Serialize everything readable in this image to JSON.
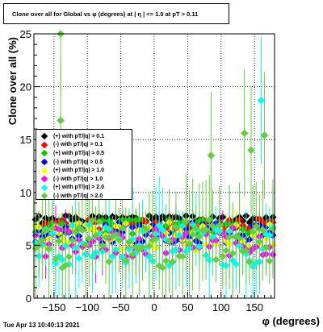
{
  "title": "Clone  over all for Global vs φ (degrees) at | η | <= 1.0 at pT > 0.11",
  "timestamp": "Tue Apr 13 10:40:13 2021",
  "chart_data": {
    "type": "scatter",
    "xlabel": "φ (degrees)",
    "ylabel": "Clone  over all (%)",
    "xlim": [
      -180,
      180
    ],
    "ylim": [
      0,
      25
    ],
    "xticks": [
      "−150",
      "−100",
      "−50",
      "0",
      "50",
      "100",
      "150"
    ],
    "xtick_values": [
      -150,
      -100,
      -50,
      0,
      50,
      100,
      150
    ],
    "yticks": [
      "0",
      "5",
      "10",
      "15",
      "20",
      "25"
    ],
    "ytick_values": [
      0,
      5,
      10,
      15,
      20,
      25
    ],
    "grid": true,
    "legend_placement": "left",
    "series": [
      {
        "name": "(+) with pT/|q| > 0.1",
        "color": "#000000",
        "mean": 7.4,
        "spread": 0.4,
        "err": 0.4,
        "seed": 1
      },
      {
        "name": "(-) with pT/|q| > 0.1",
        "color": "#ff0000",
        "mean": 7.0,
        "spread": 0.5,
        "err": 0.5,
        "seed": 2
      },
      {
        "name": "(+) with pT/|q| > 0.5",
        "color": "#00cc00",
        "mean": 6.7,
        "spread": 0.8,
        "err": 0.8,
        "seed": 3
      },
      {
        "name": "(-) with pT/|q| > 0.5",
        "color": "#0000ff",
        "mean": 6.2,
        "spread": 1.0,
        "err": 1.0,
        "seed": 4
      },
      {
        "name": "(+) with pT/|q| > 1.0",
        "color": "#ffff00",
        "mean": 5.8,
        "spread": 1.4,
        "err": 1.6,
        "seed": 5
      },
      {
        "name": "(-) with pT/|q| > 1.0",
        "color": "#ff00ff",
        "mean": 5.3,
        "spread": 1.4,
        "err": 1.8,
        "seed": 6
      },
      {
        "name": "(+) with pT/|q| > 2.0",
        "color": "#00ffff",
        "mean": 5.0,
        "spread": 2.0,
        "err": 3.5,
        "seed": 7
      },
      {
        "name": "(-) with pT/|q| > 2.0",
        "color": "#66cc44",
        "mean": 5.2,
        "spread": 2.4,
        "err": 3.8,
        "seed": 8
      }
    ]
  }
}
